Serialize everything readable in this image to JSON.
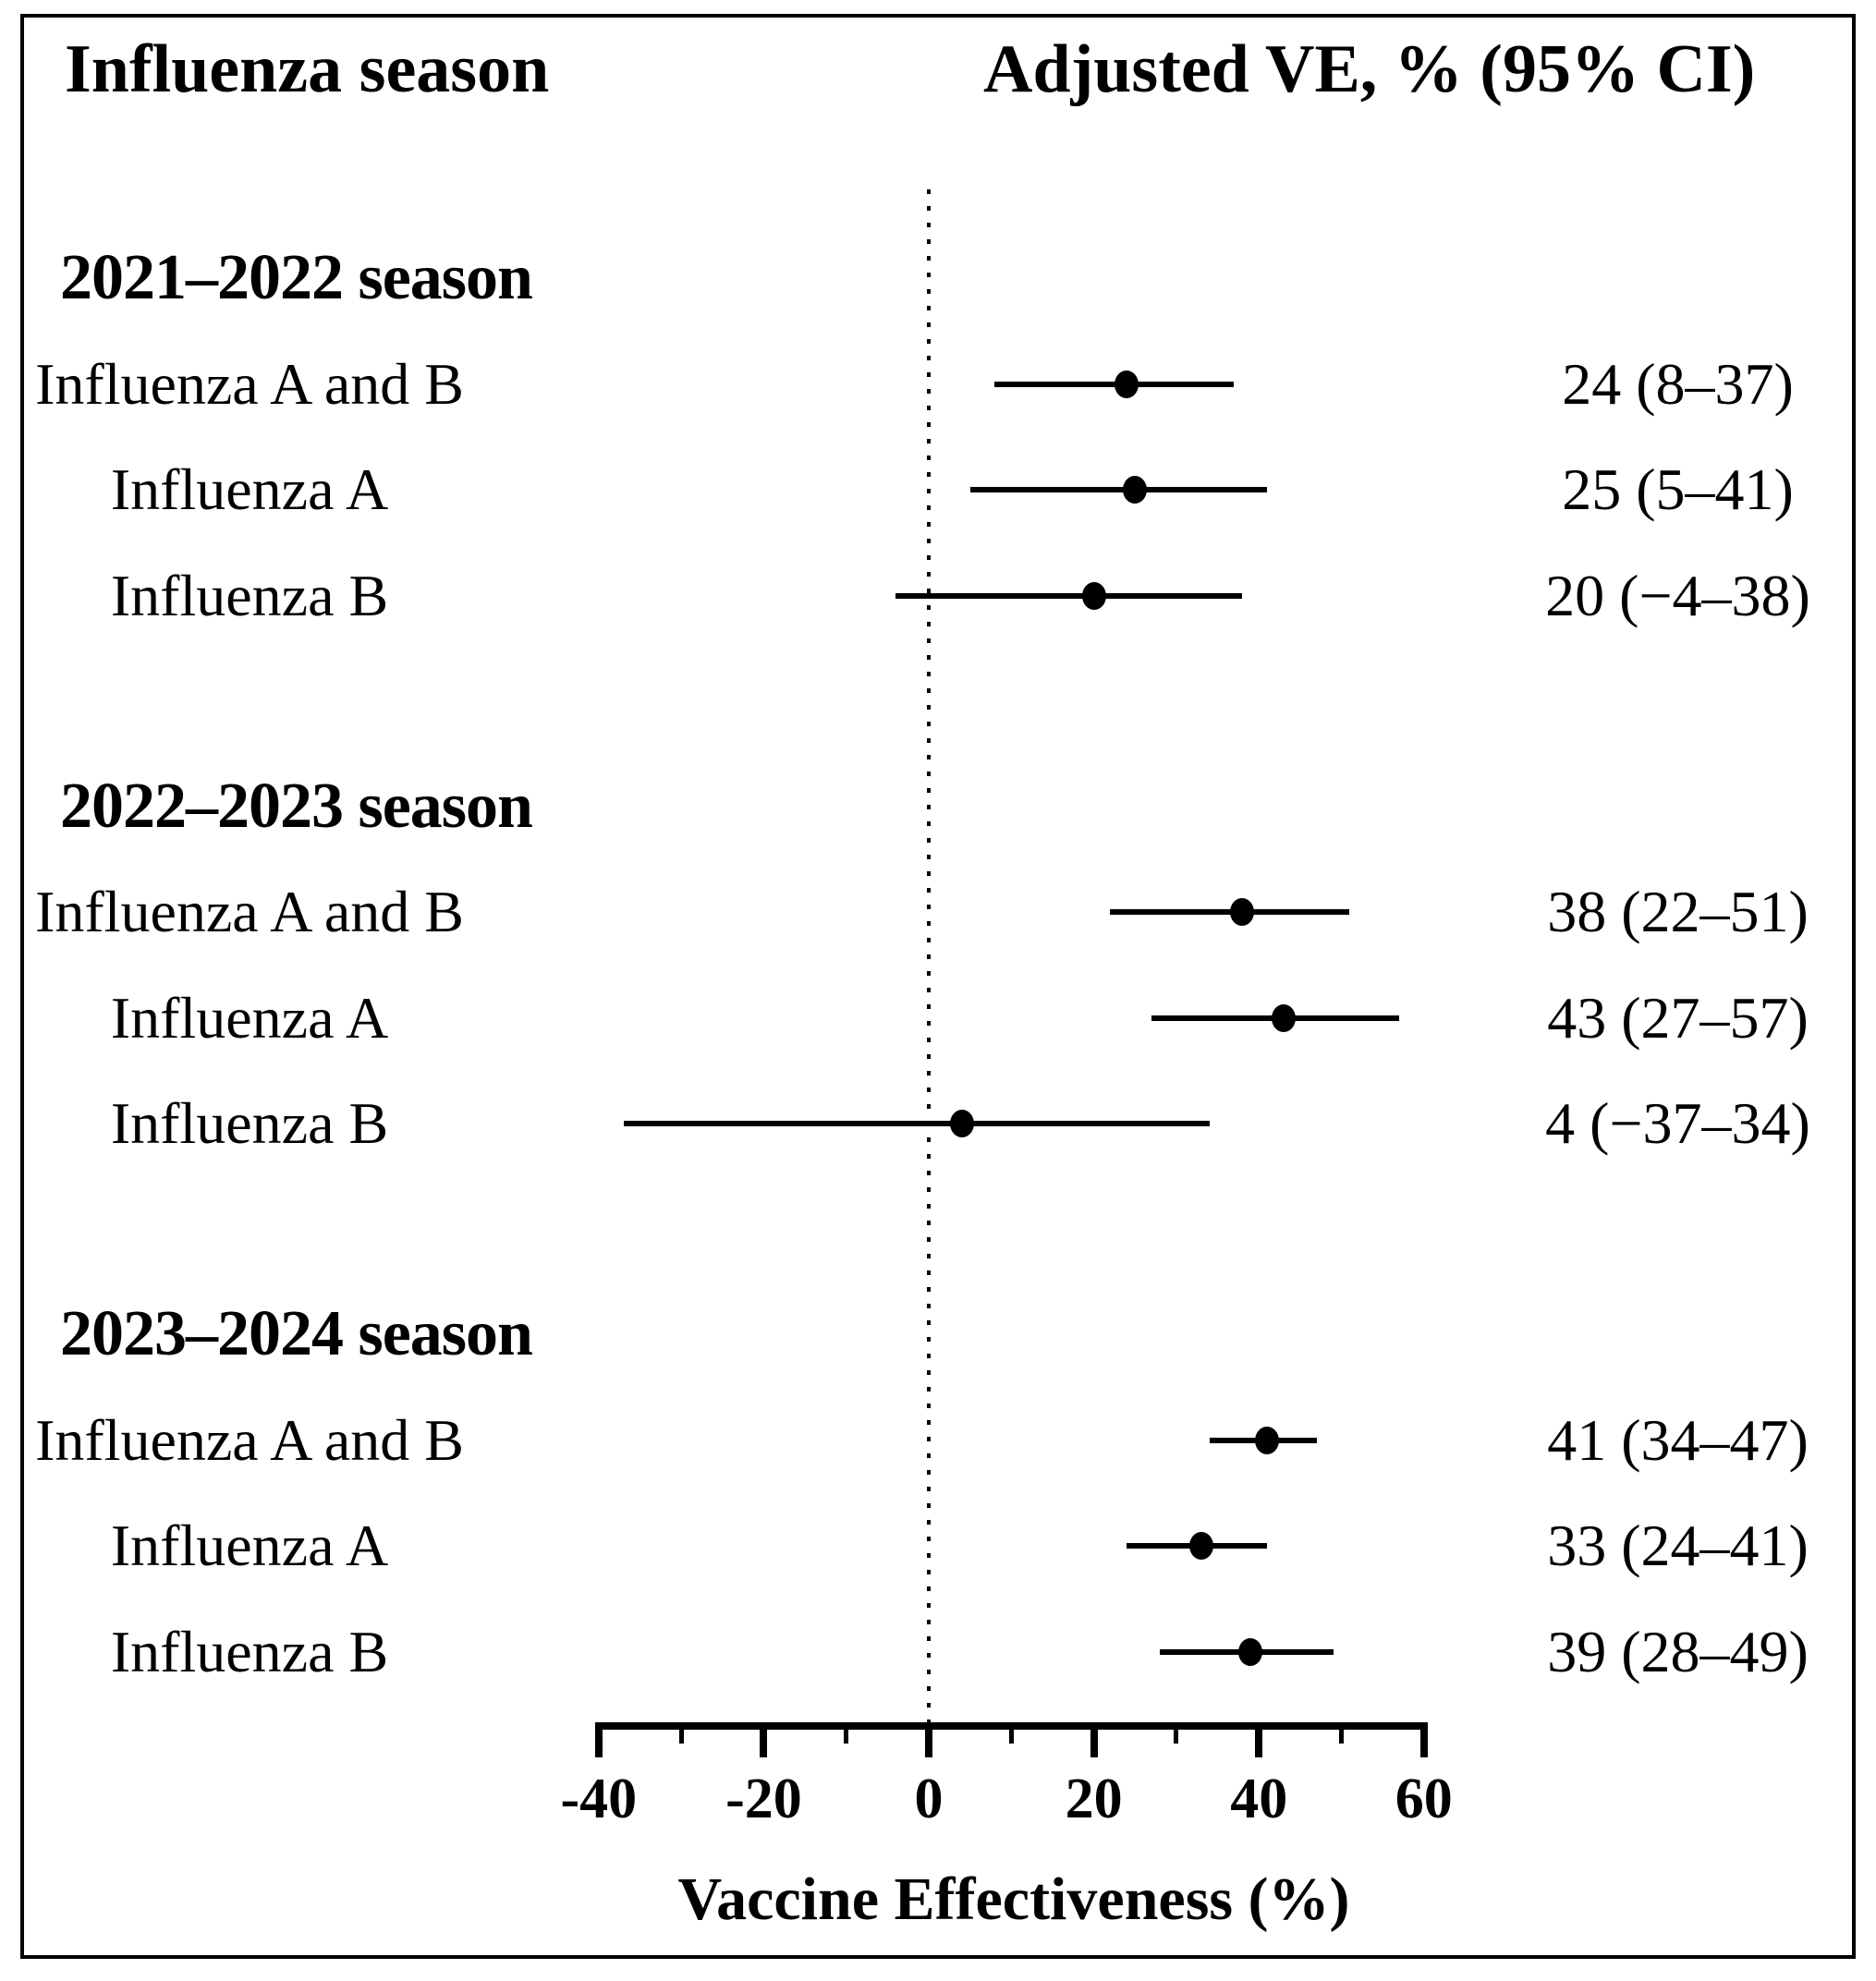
{
  "header": {
    "left": "Influenza season",
    "right": "Adjusted VE, % (95% CI)"
  },
  "chart_data": {
    "type": "forest",
    "title": "",
    "x_axis": {
      "label": "Vaccine Effectiveness (%)",
      "min": -40,
      "max": 60,
      "major_ticks": [
        "-40",
        "-20",
        "0",
        "20",
        "40",
        "60"
      ],
      "major_tick_values": [
        -40,
        -20,
        0,
        20,
        40,
        60
      ],
      "minor_tick_values": [
        -30,
        -10,
        10,
        30,
        50
      ],
      "reference_line": 0
    },
    "groups": [
      {
        "season": "2021–2022 season",
        "rows": [
          {
            "label": "Influenza A and B",
            "ve": 24,
            "ci_low": 8,
            "ci_high": 37,
            "value_text": "24 (8–37)"
          },
          {
            "label": "Influenza A",
            "ve": 25,
            "ci_low": 5,
            "ci_high": 41,
            "value_text": "25 (5–41)"
          },
          {
            "label": "Influenza B",
            "ve": 20,
            "ci_low": -4,
            "ci_high": 38,
            "value_text": "20 (−4–38)"
          }
        ]
      },
      {
        "season": "2022–2023 season",
        "rows": [
          {
            "label": "Influenza A and B",
            "ve": 38,
            "ci_low": 22,
            "ci_high": 51,
            "value_text": "38 (22–51)"
          },
          {
            "label": "Influenza A",
            "ve": 43,
            "ci_low": 27,
            "ci_high": 57,
            "value_text": "43 (27–57)"
          },
          {
            "label": "Influenza B",
            "ve": 4,
            "ci_low": -37,
            "ci_high": 34,
            "value_text": "4 (−37–34)"
          }
        ]
      },
      {
        "season": "2023–2024 season",
        "rows": [
          {
            "label": "Influenza A and B",
            "ve": 41,
            "ci_low": 34,
            "ci_high": 47,
            "value_text": "41 (34–47)"
          },
          {
            "label": "Influenza A",
            "ve": 33,
            "ci_low": 24,
            "ci_high": 41,
            "value_text": "33 (24–41)"
          },
          {
            "label": "Influenza B",
            "ve": 39,
            "ci_low": 28,
            "ci_high": 49,
            "value_text": "39 (28–49)"
          }
        ]
      }
    ]
  }
}
